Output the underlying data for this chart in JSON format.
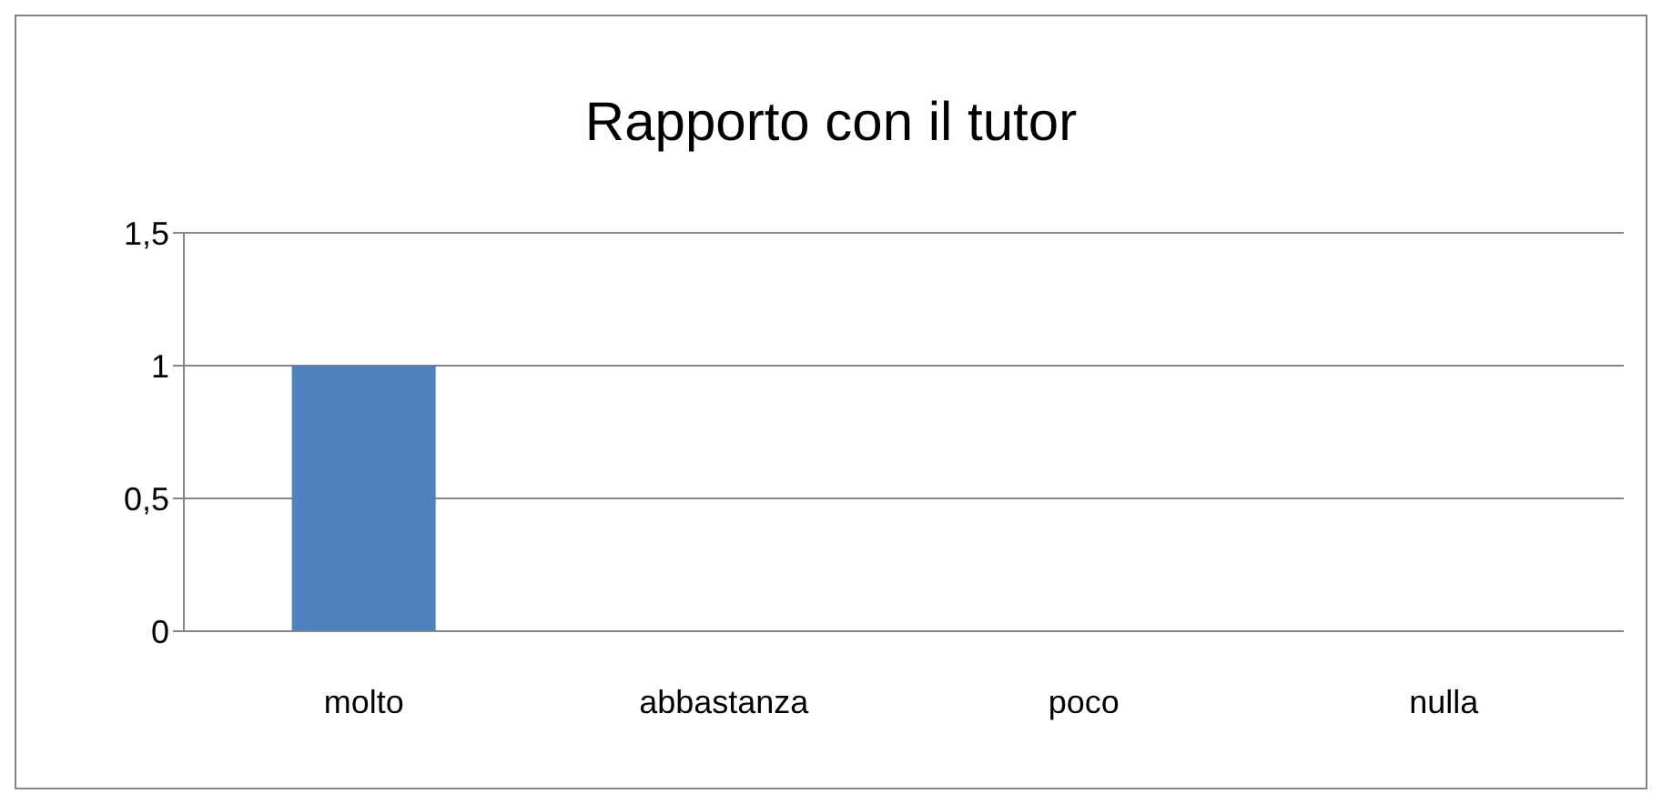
{
  "chart_data": {
    "type": "bar",
    "title": "Rapporto con il tutor",
    "categories": [
      "molto",
      "abbastanza",
      "poco",
      "nulla"
    ],
    "values": [
      1,
      0,
      0,
      0
    ],
    "color": "#4f81bd",
    "ylim": [
      0,
      1.5
    ],
    "yticks": [
      0,
      {
        "value": 0.5,
        "label": "0,5"
      },
      1,
      {
        "value": 1.5,
        "label": "1,5"
      }
    ],
    "grid": "y",
    "legend": false
  }
}
